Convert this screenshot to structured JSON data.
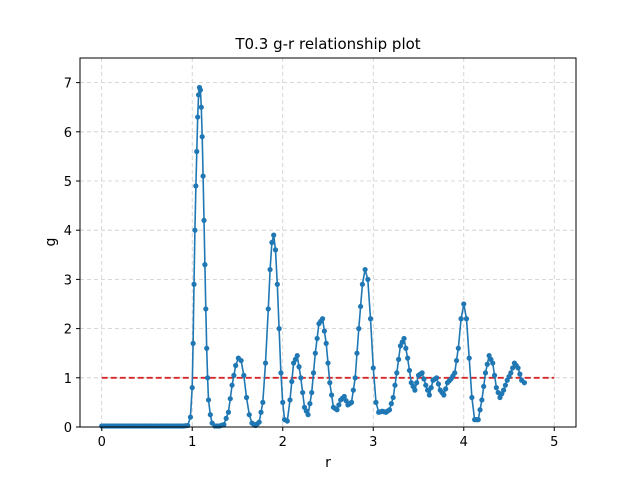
{
  "chart_data": {
    "type": "line",
    "title": "T0.3 g-r relationship plot",
    "xlabel": "r",
    "ylabel": "g",
    "xlim": [
      -0.24,
      5.24
    ],
    "ylim": [
      0,
      7.5
    ],
    "xticks": [
      0,
      1,
      2,
      3,
      4,
      5
    ],
    "yticks": [
      0,
      1,
      2,
      3,
      4,
      5,
      6,
      7
    ],
    "grid": true,
    "grid_style": "dashed",
    "legend": "none",
    "colors": {
      "series": "#1f77b4",
      "reference": "#d62728",
      "grid": "#cccccc"
    },
    "series": [
      {
        "markers": true,
        "x": [
          0.0,
          0.15,
          0.3,
          0.45,
          0.6,
          0.75,
          0.9,
          0.95,
          0.98,
          1.0,
          1.01,
          1.02,
          1.03,
          1.04,
          1.05,
          1.06,
          1.07,
          1.08,
          1.09,
          1.1,
          1.11,
          1.12,
          1.13,
          1.14,
          1.15,
          1.16,
          1.17,
          1.18,
          1.2,
          1.22,
          1.25,
          1.3,
          1.35,
          1.4,
          1.44,
          1.48,
          1.51,
          1.54,
          1.57,
          1.6,
          1.63,
          1.66,
          1.7,
          1.74,
          1.78,
          1.81,
          1.84,
          1.86,
          1.88,
          1.9,
          1.92,
          1.94,
          1.96,
          1.98,
          2.0,
          2.02,
          2.05,
          2.08,
          2.12,
          2.16,
          2.2,
          2.24,
          2.28,
          2.32,
          2.36,
          2.4,
          2.44,
          2.48,
          2.52,
          2.56,
          2.6,
          2.64,
          2.68,
          2.72,
          2.76,
          2.8,
          2.84,
          2.88,
          2.91,
          2.94,
          2.97,
          3.0,
          3.03,
          3.06,
          3.1,
          3.14,
          3.18,
          3.22,
          3.26,
          3.3,
          3.34,
          3.38,
          3.42,
          3.46,
          3.5,
          3.54,
          3.58,
          3.62,
          3.66,
          3.7,
          3.74,
          3.78,
          3.82,
          3.86,
          3.9,
          3.94,
          3.97,
          4.0,
          4.03,
          4.06,
          4.09,
          4.12,
          4.16,
          4.2,
          4.24,
          4.28,
          4.32,
          4.36,
          4.4,
          4.44,
          4.48,
          4.52,
          4.56,
          4.6,
          4.64,
          4.67
        ],
        "y": [
          0.02,
          0.02,
          0.02,
          0.02,
          0.02,
          0.02,
          0.02,
          0.03,
          0.2,
          0.8,
          1.7,
          2.9,
          4.0,
          4.9,
          5.6,
          6.3,
          6.75,
          6.9,
          6.85,
          6.5,
          5.9,
          5.1,
          4.2,
          3.3,
          2.4,
          1.6,
          1.0,
          0.55,
          0.25,
          0.08,
          0.02,
          0.02,
          0.05,
          0.3,
          0.85,
          1.25,
          1.4,
          1.35,
          1.05,
          0.6,
          0.25,
          0.08,
          0.03,
          0.1,
          0.5,
          1.3,
          2.4,
          3.2,
          3.75,
          3.9,
          3.6,
          2.9,
          2.0,
          1.1,
          0.5,
          0.15,
          0.12,
          0.55,
          1.3,
          1.45,
          1.0,
          0.4,
          0.25,
          0.7,
          1.5,
          2.1,
          2.2,
          1.7,
          0.9,
          0.4,
          0.35,
          0.55,
          0.62,
          0.45,
          0.5,
          1.0,
          2.0,
          2.9,
          3.2,
          3.0,
          2.2,
          1.2,
          0.5,
          0.3,
          0.32,
          0.3,
          0.35,
          0.6,
          1.1,
          1.65,
          1.8,
          1.4,
          0.9,
          0.75,
          1.05,
          1.1,
          0.85,
          0.65,
          0.95,
          1.0,
          0.75,
          0.65,
          0.9,
          0.98,
          1.1,
          1.6,
          2.2,
          2.5,
          2.2,
          1.4,
          0.6,
          0.15,
          0.15,
          0.55,
          1.1,
          1.45,
          1.3,
          0.8,
          0.6,
          0.75,
          0.95,
          1.1,
          1.3,
          1.2,
          0.95,
          0.9
        ]
      },
      {
        "style": "dashed",
        "x": [
          0,
          5
        ],
        "y": [
          1,
          1
        ]
      }
    ]
  }
}
